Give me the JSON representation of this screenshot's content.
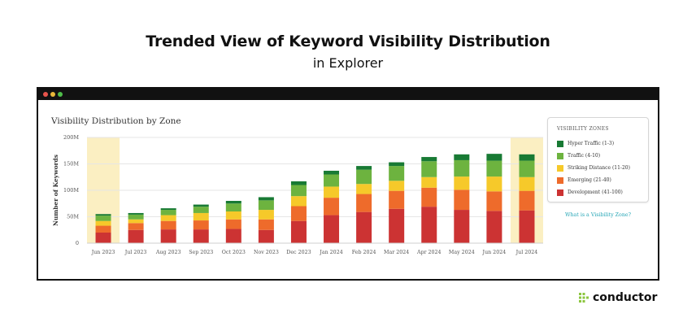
{
  "hero": {
    "title": "Trended View of Keyword Visibility Distribution",
    "subtitle": "in Explorer"
  },
  "window": {
    "controls": [
      "close",
      "minimize",
      "maximize"
    ]
  },
  "legend": {
    "title": "VISIBILITY ZONES",
    "items": [
      {
        "label": "Hyper Traffic (1-3)",
        "color": "#187a34"
      },
      {
        "label": "Traffic (4-10)",
        "color": "#6db33f"
      },
      {
        "label": "Striking Distance (11-20)",
        "color": "#f6c92a"
      },
      {
        "label": "Emerging (21-40)",
        "color": "#ee6b2b"
      },
      {
        "label": "Development (41-100)",
        "color": "#cc3333"
      }
    ],
    "link_text": "What is a Visibility Zone?"
  },
  "brand": {
    "name": "conductor",
    "icon": "conductor-logo-icon",
    "color": "#8cc63f"
  },
  "chart_data": {
    "type": "bar",
    "stacked": true,
    "title": "Visibility Distribution by Zone",
    "ylabel": "Number of Keywords",
    "xlabel": "",
    "ylim": [
      0,
      200000000
    ],
    "yticks": [
      "0",
      "50M",
      "100M",
      "150M",
      "200M"
    ],
    "grid": true,
    "legend_position": "right",
    "highlight_color": "#fbefc2",
    "highlighted_categories": [
      "Jun 2023",
      "Jul 2024"
    ],
    "categories": [
      "Jun 2023",
      "Jul 2023",
      "Aug 2023",
      "Sep 2023",
      "Oct 2023",
      "Nov 2023",
      "Dec 2023",
      "Jan 2024",
      "Feb 2024",
      "Mar 2024",
      "Apr 2024",
      "May 2024",
      "Jun 2024",
      "Jul 2024"
    ],
    "series": [
      {
        "name": "Development (41-100)",
        "color": "#cc3333",
        "values": [
          20000000,
          25000000,
          26000000,
          26000000,
          27000000,
          25000000,
          42000000,
          53000000,
          59000000,
          65000000,
          69000000,
          63000000,
          61000000,
          62000000
        ]
      },
      {
        "name": "Emerging (21-40)",
        "color": "#ee6b2b",
        "values": [
          13000000,
          13000000,
          16000000,
          17000000,
          18000000,
          20000000,
          28000000,
          33000000,
          34000000,
          34000000,
          36000000,
          38000000,
          37000000,
          37000000
        ]
      },
      {
        "name": "Striking Distance (11-20)",
        "color": "#f6c92a",
        "values": [
          9000000,
          7000000,
          11000000,
          14000000,
          15000000,
          18000000,
          19000000,
          21000000,
          19000000,
          19000000,
          20000000,
          25000000,
          28000000,
          26000000
        ]
      },
      {
        "name": "Traffic (4-10)",
        "color": "#6db33f",
        "values": [
          10000000,
          9000000,
          10000000,
          12000000,
          15000000,
          18000000,
          21000000,
          23000000,
          27000000,
          28000000,
          30000000,
          31000000,
          30000000,
          31000000
        ]
      },
      {
        "name": "Hyper Traffic (1-3)",
        "color": "#187a34",
        "values": [
          3000000,
          3000000,
          3000000,
          4000000,
          5000000,
          6000000,
          7000000,
          7000000,
          7000000,
          7000000,
          8000000,
          11000000,
          13000000,
          12000000
        ]
      }
    ]
  }
}
